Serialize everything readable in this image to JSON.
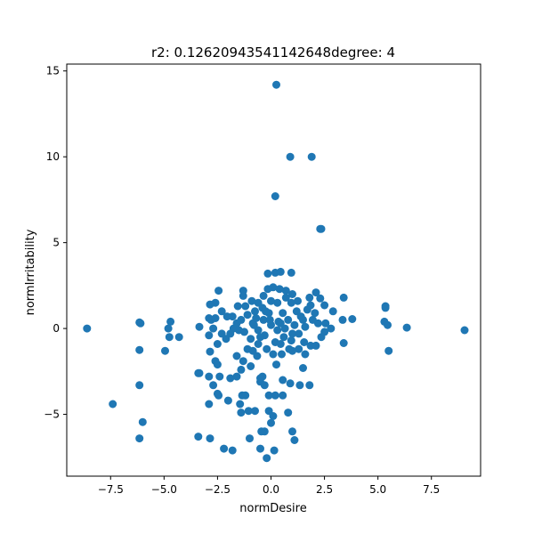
{
  "chart_data": {
    "type": "scatter",
    "title": "r2: 0.12620943541142648degree: 4",
    "xlabel": "normDesire",
    "ylabel": "normIrritability",
    "xlim": [
      -9.55,
      9.8
    ],
    "ylim": [
      -8.6,
      15.4
    ],
    "xticks": [
      {
        "value": -7.5,
        "label": "−7.5"
      },
      {
        "value": -5.0,
        "label": "−5.0"
      },
      {
        "value": -2.5,
        "label": "−2.5"
      },
      {
        "value": 0.0,
        "label": "0.0"
      },
      {
        "value": 2.5,
        "label": "2.5"
      },
      {
        "value": 5.0,
        "label": "5.0"
      },
      {
        "value": 7.5,
        "label": "7.5"
      }
    ],
    "yticks": [
      {
        "value": -5,
        "label": "−5"
      },
      {
        "value": 0,
        "label": "0"
      },
      {
        "value": 5,
        "label": "5"
      },
      {
        "value": 10,
        "label": "10"
      },
      {
        "value": 15,
        "label": "15"
      }
    ],
    "grid": false,
    "legend": "none",
    "marker_color": "#1f77b4",
    "series": [
      {
        "points": [
          [
            0.25,
            14.2
          ],
          [
            0.9,
            10.0
          ],
          [
            1.9,
            10.0
          ],
          [
            0.2,
            7.7
          ],
          [
            2.35,
            5.8
          ],
          [
            2.3,
            5.8
          ],
          [
            -8.6,
            0.0
          ],
          [
            -7.4,
            -4.4
          ],
          [
            -6.15,
            0.35
          ],
          [
            -6.1,
            0.3
          ],
          [
            -6.15,
            -1.25
          ],
          [
            -6.15,
            -3.3
          ],
          [
            -6.0,
            -5.45
          ],
          [
            -6.15,
            -6.4
          ],
          [
            -4.7,
            0.4
          ],
          [
            -4.8,
            0.0
          ],
          [
            -4.75,
            -0.5
          ],
          [
            -4.3,
            -0.5
          ],
          [
            -4.95,
            -1.3
          ],
          [
            -3.35,
            -2.6
          ],
          [
            -3.4,
            -2.6
          ],
          [
            -3.4,
            -6.3
          ],
          [
            -2.85,
            -6.4
          ],
          [
            -3.35,
            0.1
          ],
          [
            -2.9,
            0.6
          ],
          [
            -2.8,
            0.5
          ],
          [
            -2.6,
            0.6
          ],
          [
            -2.7,
            0.0
          ],
          [
            -2.9,
            -0.4
          ],
          [
            -2.5,
            -0.9
          ],
          [
            -2.85,
            -1.35
          ],
          [
            -2.6,
            -1.9
          ],
          [
            -2.9,
            -2.8
          ],
          [
            -2.7,
            -3.3
          ],
          [
            -2.5,
            -3.8
          ],
          [
            -2.9,
            -4.4
          ],
          [
            -2.45,
            -3.9
          ],
          [
            -2.4,
            -2.8
          ],
          [
            -2.5,
            -2.1
          ],
          [
            -2.45,
            2.2
          ],
          [
            -2.6,
            1.5
          ],
          [
            -2.85,
            1.4
          ],
          [
            -2.3,
            1.0
          ],
          [
            -2.3,
            -0.3
          ],
          [
            -2.1,
            -0.6
          ],
          [
            -2.0,
            -4.2
          ],
          [
            -2.2,
            -7.0
          ],
          [
            -1.8,
            -7.1
          ],
          [
            -1.75,
            0.0
          ],
          [
            -1.8,
            0.7
          ],
          [
            -1.6,
            -1.6
          ],
          [
            -1.5,
            -0.1
          ],
          [
            -1.6,
            -2.8
          ],
          [
            -1.9,
            -2.9
          ],
          [
            -1.4,
            -2.4
          ],
          [
            -1.3,
            -1.9
          ],
          [
            -1.35,
            -3.9
          ],
          [
            -1.2,
            -3.9
          ],
          [
            -1.4,
            -4.9
          ],
          [
            -1.45,
            -4.4
          ],
          [
            -1.05,
            -4.8
          ],
          [
            -0.75,
            -4.8
          ],
          [
            -0.95,
            -2.2
          ],
          [
            -0.85,
            -1.3
          ],
          [
            -0.65,
            -1.6
          ],
          [
            -0.4,
            -2.8
          ],
          [
            -0.5,
            -3.1
          ],
          [
            -0.3,
            -3.3
          ],
          [
            -0.1,
            -3.9
          ],
          [
            -0.1,
            -4.8
          ],
          [
            0.1,
            -5.1
          ],
          [
            0.0,
            -5.5
          ],
          [
            -0.3,
            -6.0
          ],
          [
            -0.2,
            -7.55
          ],
          [
            -0.5,
            -7.0
          ],
          [
            -0.45,
            -6.0
          ],
          [
            -0.5,
            -2.9
          ],
          [
            0.15,
            -7.1
          ],
          [
            -1.0,
            -6.4
          ],
          [
            0.2,
            -3.9
          ],
          [
            0.25,
            -2.1
          ],
          [
            0.5,
            -1.5
          ],
          [
            0.55,
            -3.0
          ],
          [
            0.55,
            -3.9
          ],
          [
            0.9,
            -3.2
          ],
          [
            0.8,
            -4.9
          ],
          [
            1.0,
            -6.0
          ],
          [
            1.1,
            -6.5
          ],
          [
            1.0,
            -1.3
          ],
          [
            1.3,
            -1.2
          ],
          [
            1.6,
            -1.5
          ],
          [
            1.5,
            -2.3
          ],
          [
            1.35,
            -3.3
          ],
          [
            1.8,
            -3.3
          ],
          [
            1.55,
            -0.8
          ],
          [
            1.85,
            -1.0
          ],
          [
            2.1,
            -1.0
          ],
          [
            2.35,
            -0.5
          ],
          [
            2.5,
            -0.2
          ],
          [
            2.55,
            0.3
          ],
          [
            2.8,
            0.0
          ],
          [
            3.4,
            -0.85
          ],
          [
            3.35,
            0.5
          ],
          [
            3.8,
            0.55
          ],
          [
            3.4,
            1.8
          ],
          [
            2.9,
            1.0
          ],
          [
            2.5,
            1.35
          ],
          [
            2.3,
            1.75
          ],
          [
            2.1,
            2.1
          ],
          [
            1.8,
            1.8
          ],
          [
            1.85,
            1.35
          ],
          [
            2.05,
            0.9
          ],
          [
            2.2,
            0.3
          ],
          [
            1.5,
            0.5
          ],
          [
            1.2,
            1.0
          ],
          [
            0.95,
            1.5
          ],
          [
            1.0,
            2.0
          ],
          [
            0.7,
            2.2
          ],
          [
            0.4,
            2.3
          ],
          [
            0.1,
            2.4
          ],
          [
            -0.15,
            2.3
          ],
          [
            -0.15,
            3.2
          ],
          [
            0.2,
            3.25
          ],
          [
            0.45,
            3.3
          ],
          [
            0.95,
            3.25
          ],
          [
            -0.35,
            1.9
          ],
          [
            -0.6,
            1.5
          ],
          [
            -0.9,
            1.6
          ],
          [
            -1.3,
            1.9
          ],
          [
            -1.3,
            2.2
          ],
          [
            -1.1,
            0.8
          ],
          [
            -0.85,
            0.3
          ],
          [
            -0.6,
            -0.1
          ],
          [
            -0.35,
            0.5
          ],
          [
            -0.1,
            0.9
          ],
          [
            0.3,
            1.5
          ],
          [
            0.55,
            0.9
          ],
          [
            0.8,
            0.5
          ],
          [
            1.1,
            0.2
          ],
          [
            1.3,
            -0.3
          ],
          [
            0.95,
            -0.7
          ],
          [
            0.6,
            -0.5
          ],
          [
            0.3,
            -0.1
          ],
          [
            0.0,
            0.2
          ],
          [
            -0.3,
            -0.4
          ],
          [
            -0.6,
            -0.9
          ],
          [
            -0.95,
            -0.6
          ],
          [
            -1.25,
            -0.2
          ],
          [
            -1.6,
            0.3
          ],
          [
            -1.9,
            -0.3
          ],
          [
            -2.05,
            0.7
          ],
          [
            -1.55,
            1.3
          ],
          [
            -1.2,
            1.3
          ],
          [
            -0.75,
            1.0
          ],
          [
            -0.4,
            1.2
          ],
          [
            0.0,
            1.6
          ],
          [
            0.35,
            0.4
          ],
          [
            0.65,
            0.0
          ],
          [
            1.0,
            -0.3
          ],
          [
            1.4,
            0.7
          ],
          [
            1.7,
            1.1
          ],
          [
            1.6,
            0.1
          ],
          [
            1.95,
            0.5
          ],
          [
            0.2,
            -0.8
          ],
          [
            -0.2,
            -1.2
          ],
          [
            -0.5,
            -0.5
          ],
          [
            -0.8,
            0.2
          ],
          [
            -1.1,
            -1.2
          ],
          [
            -1.4,
            0.5
          ],
          [
            0.1,
            -1.5
          ],
          [
            0.45,
            -0.9
          ],
          [
            0.7,
            1.8
          ],
          [
            1.25,
            1.6
          ],
          [
            -0.05,
            0.5
          ],
          [
            0.45,
            0.3
          ],
          [
            0.85,
            -1.2
          ],
          [
            -0.25,
            1.0
          ],
          [
            -0.7,
            0.6
          ],
          [
            5.35,
            1.3
          ],
          [
            5.35,
            1.2
          ],
          [
            5.3,
            0.4
          ],
          [
            5.45,
            0.2
          ],
          [
            6.35,
            0.05
          ],
          [
            5.5,
            -1.3
          ],
          [
            9.05,
            -0.1
          ]
        ]
      }
    ]
  }
}
